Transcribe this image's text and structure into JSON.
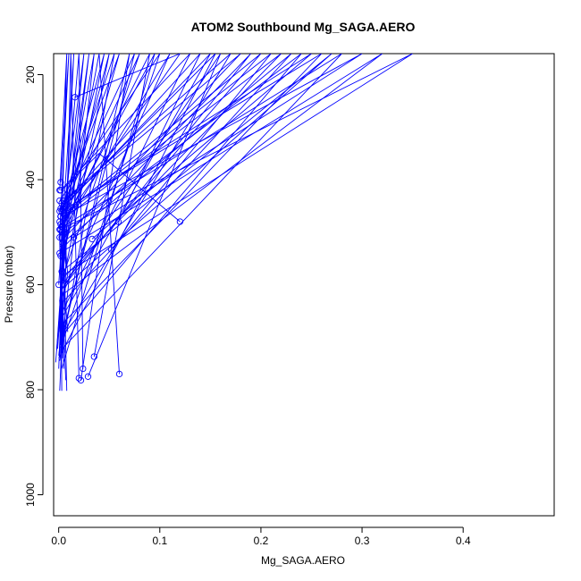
{
  "chart_data": {
    "type": "line",
    "title": "ATOM2 Southbound Mg_SAGA.AERO",
    "xlabel": "Mg_SAGA.AERO",
    "ylabel": "Pressure (mbar)",
    "xlim": [
      -0.005,
      0.49
    ],
    "ylim": [
      1040,
      160
    ],
    "y_reversed": true,
    "grid": false,
    "xticks": [
      0.0,
      0.1,
      0.2,
      0.3,
      0.4
    ],
    "xtick_labels": [
      "0.0",
      "0.1",
      "0.2",
      "0.3",
      "0.4"
    ],
    "yticks": [
      200,
      400,
      600,
      800,
      1000
    ],
    "ytick_labels": [
      "200",
      "400",
      "600",
      "800",
      "1000"
    ],
    "series_color": "#0000ff",
    "marker": "open-circle",
    "series": [
      {
        "x": [
          0.12,
          0.04,
          0.003,
          0.001,
          0.002
        ],
        "y": [
          480,
          350,
          420,
          510,
          600
        ]
      },
      {
        "x": [
          0.059,
          0.14,
          0.003,
          0.008
        ],
        "y": [
          480,
          160,
          450,
          520
        ]
      },
      {
        "x": [
          0.052,
          0.21,
          0.004,
          0.009,
          0.002
        ],
        "y": [
          533,
          160,
          470,
          580,
          640
        ]
      },
      {
        "x": [
          0.033,
          0.25,
          0.003,
          0.007
        ],
        "y": [
          513,
          160,
          460,
          560
        ]
      },
      {
        "x": [
          0.06,
          0.04,
          0.005,
          0.002
        ],
        "y": [
          770,
          160,
          520,
          700
        ]
      },
      {
        "x": [
          0.035,
          0.09,
          0.004,
          0.001
        ],
        "y": [
          737,
          160,
          490,
          720
        ]
      },
      {
        "x": [
          0.029,
          0.16,
          0.006,
          0.002
        ],
        "y": [
          775,
          160,
          600,
          730
        ]
      },
      {
        "x": [
          0.024,
          0.02,
          0.003,
          0.009
        ],
        "y": [
          760,
          160,
          540,
          690
        ]
      },
      {
        "x": [
          0.02,
          0.012,
          0.006
        ],
        "y": [
          778,
          160,
          650
        ]
      },
      {
        "x": [
          0.022,
          0.07,
          0.004
        ],
        "y": [
          782,
          160,
          700
        ]
      },
      {
        "x": [
          0.016,
          0.12,
          0.005,
          0.003
        ],
        "y": [
          243,
          160,
          480,
          620
        ]
      },
      {
        "x": [
          0.002,
          0.01,
          0.001,
          0.004
        ],
        "y": [
          405,
          160,
          500,
          740
        ]
      },
      {
        "x": [
          0.001,
          0.008,
          0.002,
          0.003
        ],
        "y": [
          420,
          160,
          560,
          802
        ]
      },
      {
        "x": [
          0.003,
          0.18,
          0.001,
          0.007
        ],
        "y": [
          445,
          160,
          520,
          782
        ]
      },
      {
        "x": [
          0.015,
          0.3,
          0.004,
          0.008
        ],
        "y": [
          510,
          160,
          470,
          802
        ]
      },
      {
        "x": [
          0.002,
          0.35,
          0.006,
          0.001
        ],
        "y": [
          495,
          160,
          580,
          802
        ]
      },
      {
        "x": [
          0.001,
          0.32,
          0.003,
          0.005
        ],
        "y": [
          540,
          160,
          620,
          760
        ]
      },
      {
        "x": [
          0.003,
          0.27,
          0.002,
          0.004
        ],
        "y": [
          575,
          160,
          610,
          740
        ]
      },
      {
        "x": [
          0.004,
          0.23,
          0.001,
          -0.002
        ],
        "y": [
          520,
          160,
          640,
          725
        ]
      },
      {
        "x": [
          0.002,
          0.2,
          0.003,
          -0.003
        ],
        "y": [
          470,
          160,
          600,
          748
        ]
      },
      {
        "x": [
          0.005,
          0.17,
          0.002,
          0.0
        ],
        "y": [
          440,
          160,
          700,
          735
        ]
      },
      {
        "x": [
          0.001,
          0.15,
          0.004,
          0.006
        ],
        "y": [
          460,
          160,
          660,
          730
        ]
      },
      {
        "x": [
          0.003,
          0.11,
          0.001,
          0.002
        ],
        "y": [
          500,
          160,
          630,
          715
        ]
      },
      {
        "x": [
          0.002,
          0.08,
          0.003,
          0.005
        ],
        "y": [
          485,
          160,
          590,
          705
        ]
      },
      {
        "x": [
          0.004,
          0.06,
          0.002,
          0.001
        ],
        "y": [
          455,
          160,
          555,
          690
        ]
      },
      {
        "x": [
          0.001,
          0.05,
          0.003,
          0.004
        ],
        "y": [
          510,
          160,
          605,
          680
        ]
      },
      {
        "x": [
          0.002,
          0.03,
          0.001,
          0.003
        ],
        "y": [
          545,
          160,
          630,
          670
        ]
      },
      {
        "x": [
          0.0,
          0.015,
          0.002,
          0.0
        ],
        "y": [
          600,
          160,
          660,
          760
        ]
      },
      {
        "x": [
          0.003,
          0.025,
          0.004,
          0.002
        ],
        "y": [
          490,
          160,
          575,
          735
        ]
      },
      {
        "x": [
          0.002,
          0.045,
          0.005,
          -0.001
        ],
        "y": [
          470,
          160,
          545,
          722
        ]
      },
      {
        "x": [
          0.004,
          0.19,
          0.002,
          0.001
        ],
        "y": [
          530,
          160,
          610,
          738
        ]
      },
      {
        "x": [
          0.001,
          0.22,
          0.003,
          0.006
        ],
        "y": [
          480,
          160,
          590,
          728
        ]
      },
      {
        "x": [
          0.006,
          0.24,
          0.002
        ],
        "y": [
          500,
          160,
          700
        ]
      },
      {
        "x": [
          0.003,
          0.26,
          0.001
        ],
        "y": [
          460,
          160,
          680
        ]
      },
      {
        "x": [
          0.002,
          0.13,
          0.004
        ],
        "y": [
          420,
          160,
          650
        ]
      },
      {
        "x": [
          0.001,
          0.1,
          0.002
        ],
        "y": [
          440,
          160,
          720
        ]
      },
      {
        "x": [
          0.005,
          0.075,
          0.003
        ],
        "y": [
          450,
          160,
          700
        ]
      },
      {
        "x": [
          0.002,
          0.055,
          0.001
        ],
        "y": [
          470,
          160,
          745
        ]
      },
      {
        "x": [
          0.003,
          0.035,
          0.002
        ],
        "y": [
          510,
          160,
          735
        ]
      },
      {
        "x": [
          0.004,
          0.28,
          0.002
        ],
        "y": [
          490,
          160,
          725
        ]
      },
      {
        "x": [
          0.002,
          0.155,
          0.0
        ],
        "y": [
          455,
          160,
          740
        ]
      },
      {
        "x": [
          0.001,
          0.095,
          0.003
        ],
        "y": [
          495,
          160,
          760
        ]
      }
    ]
  }
}
